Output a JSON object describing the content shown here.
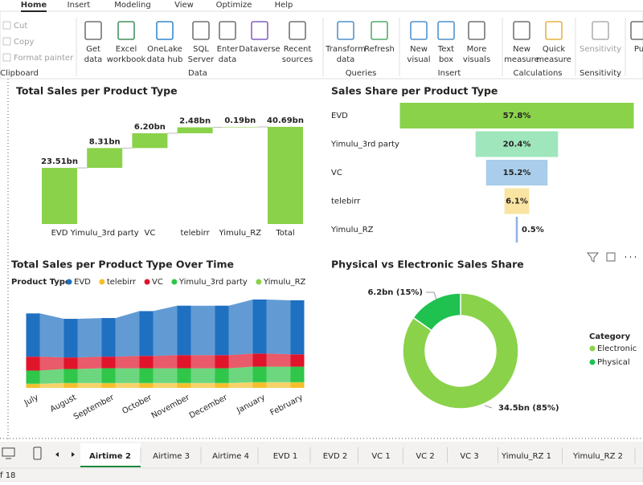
{
  "ribbon": {
    "tabs": [
      "Home",
      "Insert",
      "Modeling",
      "View",
      "Optimize",
      "Help"
    ],
    "clipboard": [
      "Cut",
      "Copy",
      "Format painter"
    ],
    "buttons": [
      [
        "Get",
        "data"
      ],
      [
        "Excel",
        "workbook"
      ],
      [
        "OneLake",
        "data hub"
      ],
      [
        "SQL",
        "Server"
      ],
      [
        "Enter",
        "data"
      ],
      [
        "Dataverse"
      ],
      [
        "Recent",
        "sources"
      ],
      [
        "Transform",
        "data"
      ],
      [
        "Refresh"
      ],
      [
        "New",
        "visual"
      ],
      [
        "Text",
        "box"
      ],
      [
        "More",
        "visuals"
      ],
      [
        "New",
        "measure"
      ],
      [
        "Quick",
        "measure"
      ],
      [
        "Sensitivity"
      ],
      [
        "Pu"
      ]
    ],
    "groups": [
      "Clipboard",
      "Data",
      "Queries",
      "Insert",
      "Calculations",
      "Sensitivity"
    ]
  },
  "chart_data": [
    {
      "type": "waterfall",
      "title": "Total Sales per Product Type",
      "categories": [
        "EVD",
        "Yimulu_3rd party",
        "VC",
        "telebirr",
        "Yimulu_RZ",
        "Total"
      ],
      "values": [
        23.51,
        8.31,
        6.2,
        2.48,
        0.19,
        40.69
      ],
      "value_labels": [
        "23.51bn",
        "8.31bn",
        "6.20bn",
        "2.48bn",
        "0.19bn",
        "40.69bn"
      ],
      "color": "#8ad24a"
    },
    {
      "type": "funnel",
      "title": "Sales Share per Product Type",
      "categories": [
        "EVD",
        "Yimulu_3rd party",
        "VC",
        "telebirr",
        "Yimulu_RZ"
      ],
      "values": [
        57.8,
        20.4,
        15.2,
        6.1,
        0.5
      ],
      "value_labels": [
        "57.8%",
        "20.4%",
        "15.2%",
        "6.1%",
        "0.5%"
      ],
      "colors": [
        "#8ad24a",
        "#9fe6bd",
        "#a9cdea",
        "#f9e4a2",
        "#8fb3de"
      ]
    },
    {
      "type": "ribbon",
      "title": "Total Sales per Product Type Over Time",
      "legend_title": "Product Type",
      "categories": [
        "July",
        "August",
        "September",
        "October",
        "November",
        "December",
        "January",
        "February"
      ],
      "series": [
        {
          "name": "EVD",
          "color": "#1f70c1",
          "values": [
            2.8,
            2.5,
            2.5,
            2.9,
            3.2,
            3.2,
            3.5,
            3.5
          ]
        },
        {
          "name": "telebirr",
          "color": "#f5bf2a",
          "values": [
            0.25,
            0.3,
            0.3,
            0.3,
            0.3,
            0.3,
            0.35,
            0.35
          ]
        },
        {
          "name": "VC",
          "color": "#e0142b",
          "values": [
            0.9,
            0.75,
            0.75,
            0.8,
            0.85,
            0.85,
            0.85,
            0.8
          ]
        },
        {
          "name": "Yimulu_3rd party",
          "color": "#2fc64a",
          "values": [
            0.85,
            0.9,
            0.95,
            0.95,
            0.95,
            0.95,
            1.0,
            1.0
          ]
        },
        {
          "name": "Yimulu_RZ",
          "color": "#8ad24a",
          "values": [
            0.02,
            0.02,
            0.02,
            0.02,
            0.02,
            0.02,
            0.02,
            0.02
          ]
        }
      ]
    },
    {
      "type": "donut",
      "title": "Physical vs Electronic Sales Share",
      "legend_title": "Category",
      "categories": [
        "Electronic",
        "Physical"
      ],
      "values": [
        34.5,
        6.2
      ],
      "value_labels": [
        "34.5bn (85%)",
        "6.2bn (15%)"
      ],
      "colors": [
        "#8ad24a",
        "#1fc24f"
      ]
    }
  ],
  "pages": {
    "tabs": [
      "Airtime 2",
      "Airtime 3",
      "Airtime 4",
      "EVD 1",
      "EVD 2",
      "VC 1",
      "VC 2",
      "VC 3",
      "Yimulu_RZ 1",
      "Yimulu_RZ 2"
    ],
    "active": 0,
    "status": "f 18"
  }
}
